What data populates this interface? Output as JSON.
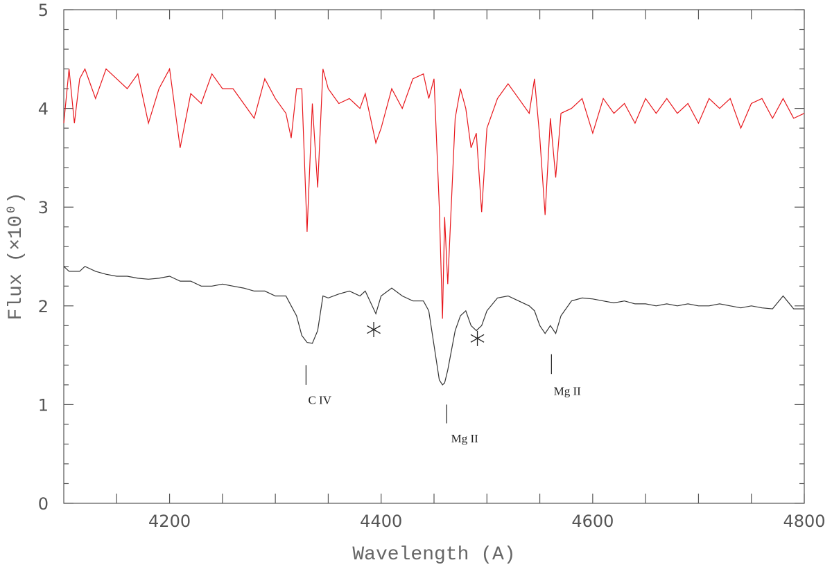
{
  "chart_data": {
    "type": "line",
    "xlabel": "Wavelength (A)",
    "ylabel": "Flux (×10⁰)",
    "xlim": [
      4100,
      4800
    ],
    "ylim": [
      0,
      5
    ],
    "xticks": [
      4200,
      4400,
      4600,
      4800
    ],
    "yticks": [
      0,
      1,
      2,
      3,
      4,
      5
    ],
    "xminorticks": [
      4150,
      4250,
      4300,
      4350,
      4450,
      4500,
      4550,
      4650,
      4700,
      4750
    ],
    "yminorticks": [
      0.2,
      0.4,
      0.6,
      0.8,
      1.2,
      1.4,
      1.6,
      1.8,
      2.2,
      2.4,
      2.6,
      2.8,
      3.2,
      3.4,
      3.6,
      3.8,
      4.2,
      4.4,
      4.6,
      4.8
    ],
    "x": [
      4100,
      4105,
      4110,
      4115,
      4120,
      4130,
      4140,
      4150,
      4160,
      4170,
      4180,
      4190,
      4200,
      4210,
      4220,
      4230,
      4240,
      4250,
      4260,
      4270,
      4280,
      4290,
      4300,
      4310,
      4315,
      4320,
      4325,
      4330,
      4335,
      4340,
      4345,
      4350,
      4360,
      4370,
      4380,
      4385,
      4395,
      4400,
      4410,
      4420,
      4430,
      4440,
      4445,
      4450,
      4455,
      4458,
      4460,
      4463,
      4470,
      4475,
      4480,
      4485,
      4490,
      4495,
      4500,
      4510,
      4520,
      4530,
      4540,
      4545,
      4550,
      4555,
      4560,
      4565,
      4570,
      4580,
      4590,
      4600,
      4610,
      4620,
      4630,
      4640,
      4650,
      4660,
      4670,
      4680,
      4690,
      4700,
      4710,
      4720,
      4730,
      4740,
      4750,
      4760,
      4770,
      4780,
      4790,
      4800
    ],
    "series": [
      {
        "color": "#e8171c",
        "values": [
          3.85,
          4.4,
          3.85,
          4.3,
          4.4,
          4.1,
          4.4,
          4.3,
          4.2,
          4.35,
          3.85,
          4.2,
          4.4,
          3.6,
          4.15,
          4.05,
          4.35,
          4.2,
          4.2,
          4.05,
          3.9,
          4.3,
          4.1,
          3.95,
          3.7,
          4.2,
          4.2,
          2.75,
          4.05,
          3.2,
          4.4,
          4.2,
          4.05,
          4.1,
          4.0,
          4.15,
          3.65,
          3.8,
          4.2,
          4.0,
          4.3,
          4.35,
          4.1,
          4.3,
          3.0,
          1.87,
          2.9,
          2.22,
          3.9,
          4.2,
          4.0,
          3.6,
          3.75,
          2.95,
          3.8,
          4.1,
          4.25,
          4.1,
          3.95,
          4.3,
          3.7,
          2.92,
          3.9,
          3.3,
          3.95,
          4.0,
          4.1,
          3.75,
          4.1,
          3.95,
          4.05,
          3.85,
          4.1,
          3.95,
          4.1,
          3.95,
          4.05,
          3.85,
          4.1,
          4.0,
          4.1,
          3.8,
          4.05,
          4.1,
          3.9,
          4.1,
          3.9,
          3.95
        ]
      },
      {
        "color": "#333333",
        "values": [
          2.4,
          2.35,
          2.35,
          2.35,
          2.4,
          2.35,
          2.32,
          2.3,
          2.3,
          2.28,
          2.27,
          2.28,
          2.3,
          2.25,
          2.25,
          2.2,
          2.2,
          2.22,
          2.2,
          2.18,
          2.15,
          2.15,
          2.1,
          2.1,
          2.0,
          1.9,
          1.7,
          1.63,
          1.62,
          1.75,
          2.1,
          2.08,
          2.12,
          2.15,
          2.1,
          2.15,
          1.92,
          2.1,
          2.18,
          2.1,
          2.05,
          2.05,
          1.95,
          1.6,
          1.25,
          1.2,
          1.22,
          1.35,
          1.75,
          1.9,
          1.95,
          1.8,
          1.75,
          1.8,
          1.95,
          2.08,
          2.1,
          2.05,
          2.0,
          1.95,
          1.8,
          1.72,
          1.8,
          1.72,
          1.9,
          2.05,
          2.08,
          2.07,
          2.05,
          2.03,
          2.05,
          2.02,
          2.02,
          2.0,
          2.02,
          2.0,
          2.02,
          2.0,
          2.0,
          2.02,
          2.0,
          1.98,
          2.0,
          1.98,
          1.97,
          2.1,
          1.97,
          1.97
        ]
      }
    ],
    "annotations": [
      {
        "text": "C IV",
        "x": 4342,
        "y": 1.05,
        "tick_x": 4329,
        "tick_y": [
          1.4,
          1.2
        ]
      },
      {
        "text": "Mg II",
        "x": 4479,
        "y": 0.66,
        "tick_x": 4462,
        "tick_y": [
          1.0,
          0.81
        ]
      },
      {
        "text": "Mg II",
        "x": 4576,
        "y": 1.14,
        "tick_x": 4561,
        "tick_y": [
          1.51,
          1.31
        ]
      }
    ],
    "markers": [
      {
        "x": 4393,
        "y": 1.76
      },
      {
        "x": 4491,
        "y": 1.67
      }
    ]
  }
}
